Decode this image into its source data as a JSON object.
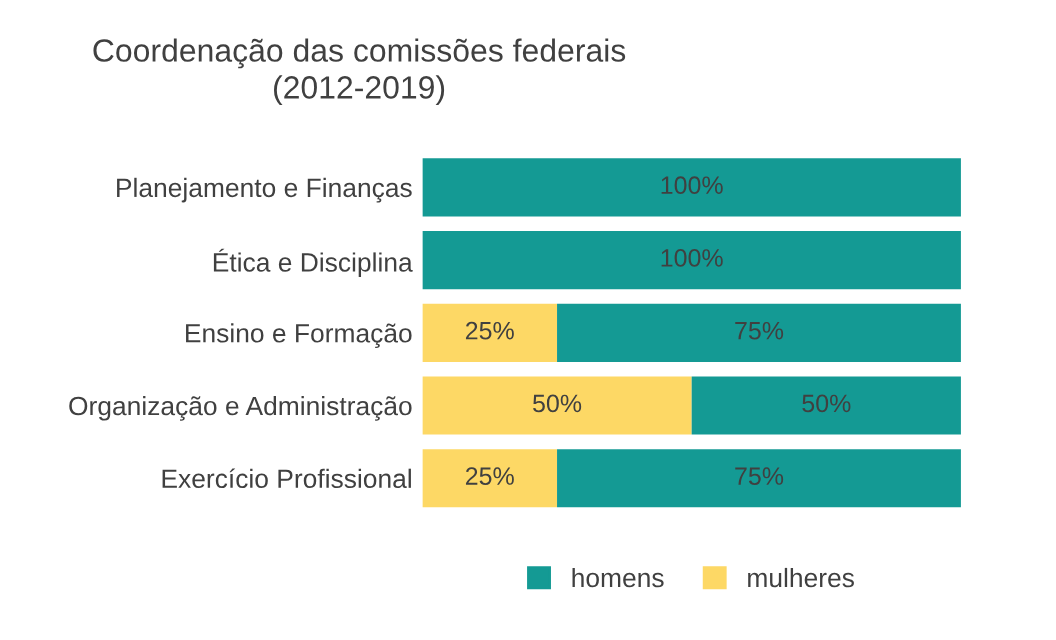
{
  "chart_data": {
    "type": "bar",
    "orientation": "horizontal",
    "stacked": true,
    "title": "Coordenação das comissões federais\n(2012-2019)",
    "categories": [
      "Planejamento e Finanças",
      "Ética e Disciplina",
      "Ensino e Formação",
      "Organização e Administração",
      "Exercício Profissional"
    ],
    "series": [
      {
        "name": "mulheres",
        "color": "#fdd865",
        "values": [
          0,
          0,
          25,
          50,
          25
        ],
        "value_labels": [
          null,
          null,
          "25%",
          "50%",
          "25%"
        ]
      },
      {
        "name": "homens",
        "color": "#149a94",
        "values": [
          100,
          100,
          75,
          50,
          75
        ],
        "value_labels": [
          "100%",
          "100%",
          "75%",
          "50%",
          "75%"
        ]
      }
    ],
    "legend": "bottom",
    "grid": false
  }
}
